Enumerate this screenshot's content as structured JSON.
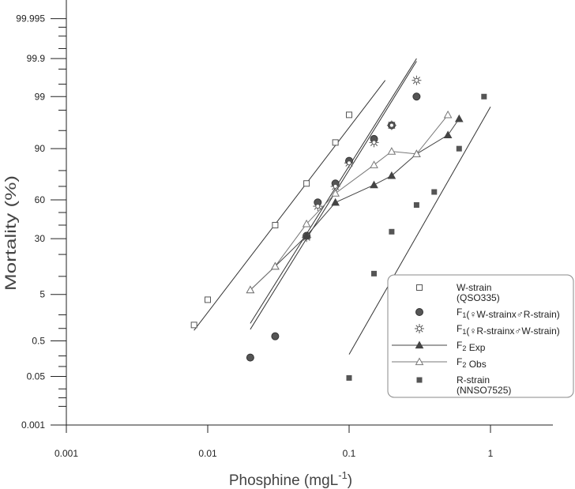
{
  "chart_data": {
    "type": "scatter",
    "title": "",
    "xlabel": "Phosphine (mgL",
    "xlabel_sup": "-1",
    "xlabel_close": ")",
    "ylabel": "Mortality (%)",
    "xscale": "log",
    "yscale": "probit",
    "xlim": [
      0.001,
      1
    ],
    "ylim": [
      0.001,
      99.999
    ],
    "grid": false,
    "legend_position": "bottom-right",
    "x_ticks": [
      0.001,
      0.01,
      0.1,
      1
    ],
    "x_tick_labels": [
      "0.001",
      "0.01",
      "0.1",
      "1"
    ],
    "y_ticks": [
      0.001,
      0.05,
      0.5,
      5,
      30,
      60,
      90,
      99,
      99.9,
      99.995
    ],
    "y_tick_labels": [
      "0.001",
      "0.05",
      "0.5",
      "5",
      "30",
      "60",
      "90",
      "99",
      "99.9",
      "99.995"
    ],
    "y_minor_ticks": [
      0.005,
      0.01,
      0.02,
      0.1,
      0.2,
      1,
      2,
      10,
      20,
      40,
      50,
      70,
      80,
      95,
      98,
      99.5,
      99.8,
      99.95,
      99.98,
      99.99
    ],
    "series": [
      {
        "name_parts": [
          {
            "t": "W-strain"
          }
        ],
        "name_line2": "(QSO335)",
        "marker": "open-square",
        "color": "#555555",
        "points": [
          [
            0.008,
            1.2
          ],
          [
            0.01,
            4.0
          ],
          [
            0.03,
            40
          ],
          [
            0.05,
            72
          ],
          [
            0.08,
            92
          ],
          [
            0.1,
            97.5
          ]
        ],
        "fit": [
          [
            0.008,
            0.9
          ],
          [
            0.18,
            99.6
          ]
        ]
      },
      {
        "name_parts": [
          {
            "t": "F"
          },
          {
            "t": "1",
            "sub": true
          },
          {
            "t": "(♀W-strainx♂R-strain)"
          }
        ],
        "marker": "filled-circle",
        "color": "#555555",
        "points": [
          [
            0.02,
            0.18
          ],
          [
            0.03,
            0.65
          ],
          [
            0.05,
            32
          ],
          [
            0.06,
            58
          ],
          [
            0.08,
            72
          ],
          [
            0.1,
            85
          ],
          [
            0.15,
            93
          ],
          [
            0.2,
            96
          ],
          [
            0.3,
            99
          ]
        ],
        "fit": [
          [
            0.02,
            0.95
          ],
          [
            0.3,
            99.88
          ]
        ]
      },
      {
        "name_parts": [
          {
            "t": "F"
          },
          {
            "t": "1",
            "sub": true
          },
          {
            "t": "(♀R-strainx♂W-strain)"
          }
        ],
        "marker": "sun",
        "color": "#555555",
        "points": [
          [
            0.05,
            31
          ],
          [
            0.06,
            55
          ],
          [
            0.08,
            70
          ],
          [
            0.1,
            84
          ],
          [
            0.15,
            92
          ],
          [
            0.2,
            96
          ],
          [
            0.3,
            99.6
          ]
        ],
        "fit": [
          [
            0.02,
            1.3
          ],
          [
            0.3,
            99.9
          ]
        ]
      },
      {
        "name_parts": [
          {
            "t": "F"
          },
          {
            "t": "2",
            "sub": true
          },
          {
            "t": " Exp"
          }
        ],
        "marker": "filled-triangle",
        "color": "#444444",
        "connect": true,
        "points": [
          [
            0.02,
            6
          ],
          [
            0.03,
            14
          ],
          [
            0.05,
            32
          ],
          [
            0.08,
            58
          ],
          [
            0.15,
            71
          ],
          [
            0.2,
            77
          ],
          [
            0.3,
            88
          ],
          [
            0.5,
            94
          ],
          [
            0.6,
            97
          ]
        ]
      },
      {
        "name_parts": [
          {
            "t": "F"
          },
          {
            "t": "2",
            "sub": true
          },
          {
            "t": " Obs"
          }
        ],
        "marker": "open-triangle",
        "color": "#777777",
        "connect": true,
        "points": [
          [
            0.02,
            6
          ],
          [
            0.03,
            14
          ],
          [
            0.05,
            41
          ],
          [
            0.08,
            65
          ],
          [
            0.15,
            83
          ],
          [
            0.2,
            89
          ],
          [
            0.3,
            88
          ],
          [
            0.5,
            97.5
          ]
        ]
      },
      {
        "name_parts": [
          {
            "t": "R-strain"
          }
        ],
        "name_line2": "(NNSO7525)",
        "marker": "filled-square",
        "color": "#555555",
        "points": [
          [
            0.1,
            0.045
          ],
          [
            0.15,
            11
          ],
          [
            0.2,
            35
          ],
          [
            0.3,
            56
          ],
          [
            0.4,
            66
          ],
          [
            0.6,
            90
          ],
          [
            0.9,
            99
          ]
        ],
        "fit": [
          [
            0.1,
            0.22
          ],
          [
            1,
            98.3
          ]
        ]
      }
    ]
  }
}
